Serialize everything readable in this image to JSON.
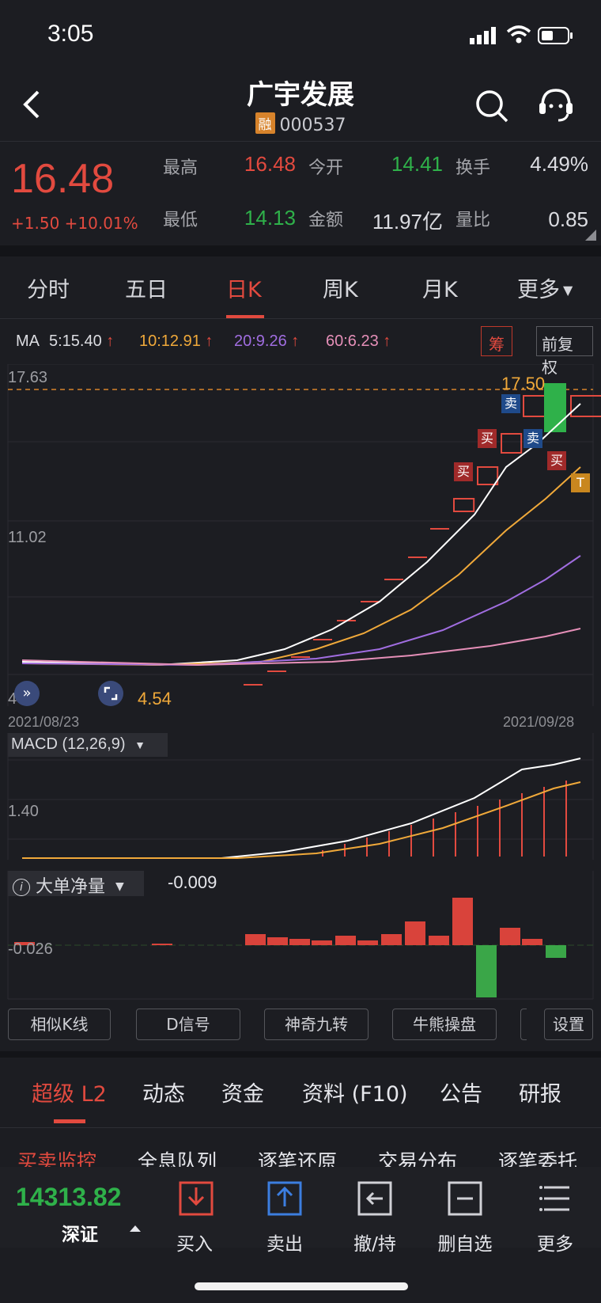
{
  "status": {
    "time": "3:05"
  },
  "header": {
    "title": "广宇发展",
    "badge": "融",
    "code": "000537"
  },
  "quote": {
    "price": "16.48",
    "change": "+1.50 +10.01%",
    "high_label": "最高",
    "high": "16.48",
    "open_label": "今开",
    "open": "14.41",
    "turnover_label": "换手",
    "turnover": "4.49%",
    "low_label": "最低",
    "low": "14.13",
    "amount_label": "金额",
    "amount": "11.97亿",
    "volratio_label": "量比",
    "volratio": "0.85"
  },
  "period_tabs": [
    "分时",
    "五日",
    "日K",
    "周K",
    "月K",
    "更多"
  ],
  "active_period": "日K",
  "ma": {
    "prefix": "MA",
    "ma5": "5:15.40",
    "ma10": "10:12.91",
    "ma20": "20:9.26",
    "ma60": "60:6.23",
    "chip_button": "筹",
    "adjust_button": "前复权",
    "colors": {
      "ma5": "#ffffff",
      "ma10": "#f0a93a",
      "ma20": "#a06de0",
      "ma60": "#e58fb8"
    }
  },
  "kline": {
    "y_top_label": "17.63",
    "y_mid_label": "11.02",
    "y_bottom_label": "4",
    "high_marker": "17.50",
    "low_marker": "4.54",
    "date_start": "2021/08/23",
    "date_end": "2021/09/28",
    "signals": {
      "buy": "买",
      "sell": "卖",
      "t": "T"
    }
  },
  "macd": {
    "title": "MACD (12,26,9)",
    "y_label": "1.40"
  },
  "bigorder": {
    "title": "大单净量",
    "value": "-0.009",
    "y_label": "-0.026"
  },
  "tools": [
    "相似K线",
    "D信号",
    "神奇九转",
    "牛熊操盘",
    "设置"
  ],
  "info_tabs": [
    "超级 L2",
    "动态",
    "资金",
    "资料 (F10)",
    "公告",
    "研报"
  ],
  "active_info_tab": "超级 L2",
  "l2_tabs": [
    "买卖监控",
    "全息队列",
    "逐笔还原",
    "交易分布",
    "逐笔委托"
  ],
  "active_l2_tab": "买卖监控",
  "bottom": {
    "index_value": "14313.82",
    "index_name": "深证",
    "actions": [
      "买入",
      "卖出",
      "撤/持",
      "删自选",
      "更多"
    ]
  }
}
